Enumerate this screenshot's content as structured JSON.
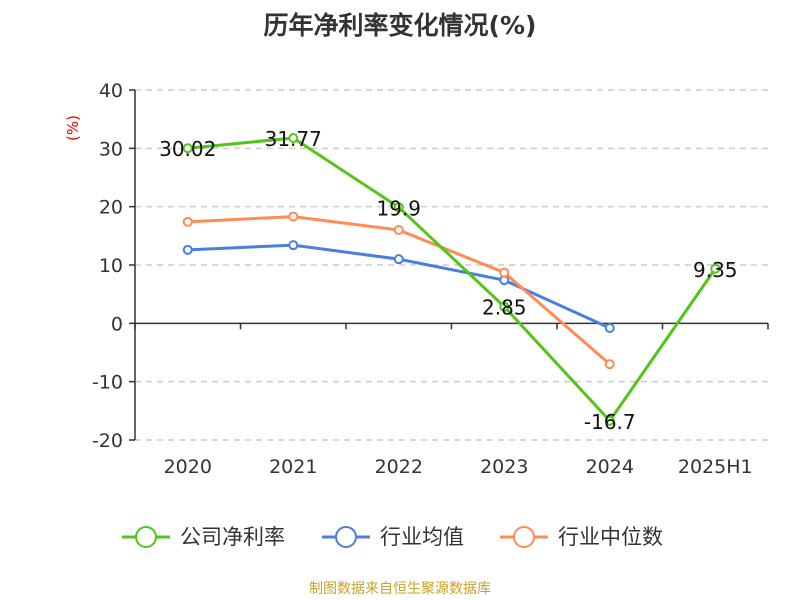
{
  "chart_data": {
    "type": "line",
    "title": "历年净利率变化情况(%)",
    "ylabel": "(%)",
    "categories": [
      "2020",
      "2021",
      "2022",
      "2023",
      "2024",
      "2025H1"
    ],
    "ylim": [
      -20,
      40
    ],
    "yticks": [
      -20,
      -10,
      0,
      10,
      20,
      30,
      40
    ],
    "grid": true,
    "legend_position": "bottom",
    "series": [
      {
        "name": "公司净利率",
        "color": "#52c41a",
        "values": [
          30.02,
          31.77,
          19.9,
          2.85,
          -16.7,
          9.35
        ],
        "labels": [
          "30.02",
          "31.77",
          "19.9",
          "2.85",
          "-16.7",
          "9.35"
        ]
      },
      {
        "name": "行业均值",
        "color": "#4a7fe0",
        "values": [
          12.6,
          13.4,
          11.0,
          7.4,
          -0.8,
          null
        ]
      },
      {
        "name": "行业中位数",
        "color": "#ff8c55",
        "values": [
          17.4,
          18.3,
          16.0,
          8.7,
          -7.0,
          null
        ]
      }
    ]
  },
  "source": "制图数据来自恒生聚源数据库"
}
